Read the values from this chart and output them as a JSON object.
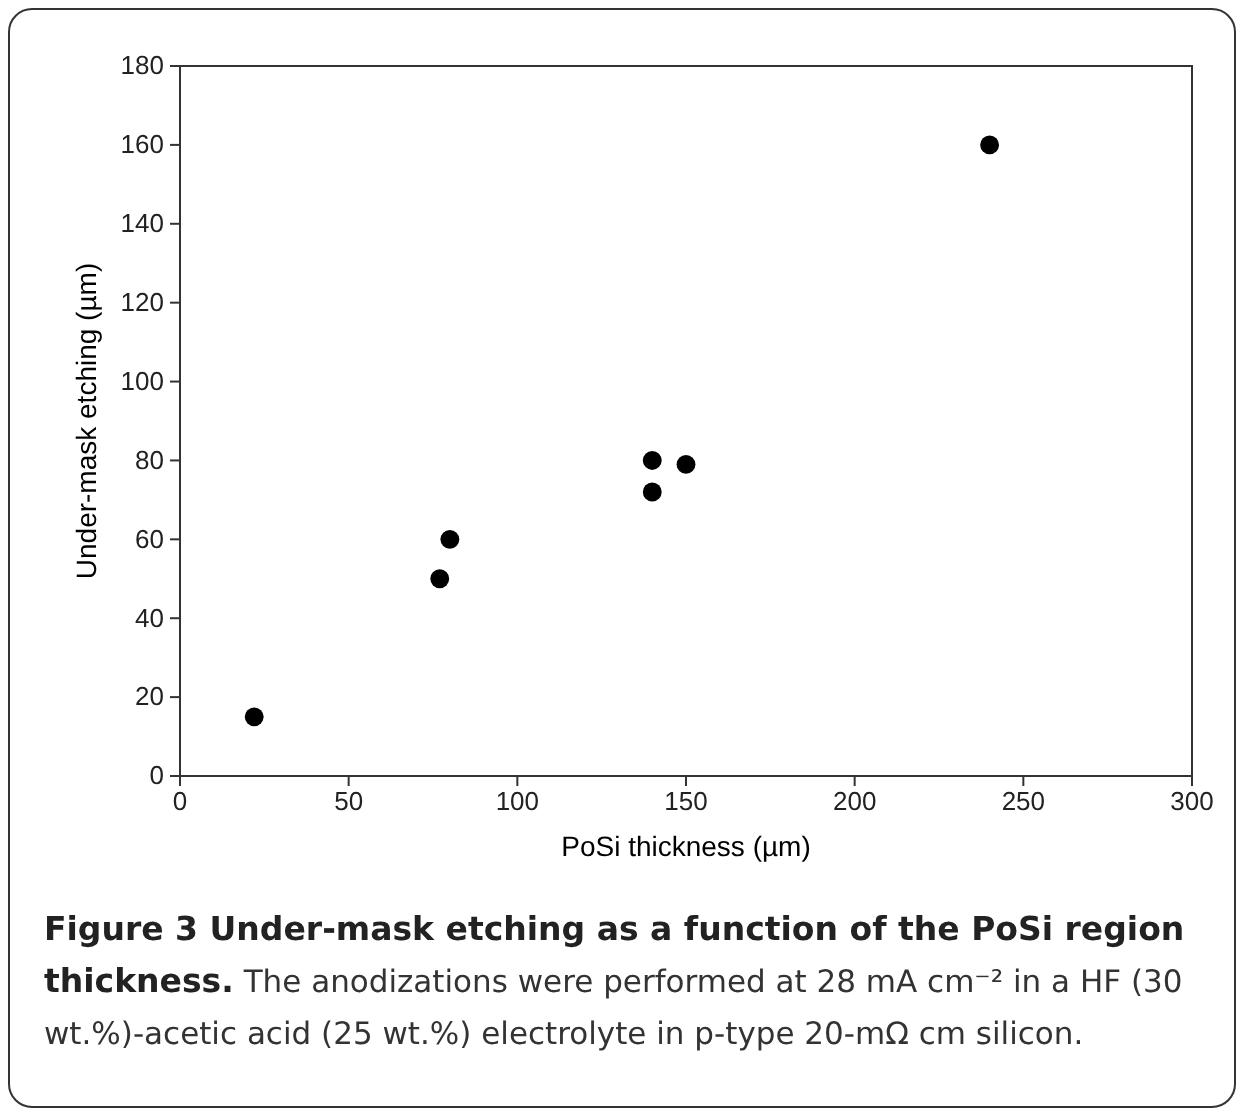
{
  "chart_data": {
    "type": "scatter",
    "title": "Figure 3 Under-mask etching as a function of the PoSi region thickness.",
    "annotations": [
      "The anodizations were performed at 28 mA cm⁻² in a HF (30 wt.%)-acetic acid (25 wt.%) electrolyte in p-type 20-mΩ cm silicon."
    ],
    "xlabel": "PoSi thickness (µm)",
    "ylabel": "Under-mask etching (µm)",
    "x": [
      22,
      77,
      80,
      140,
      140,
      150,
      240
    ],
    "series": [
      {
        "color": "#000000",
        "values": [
          15,
          50,
          60,
          80,
          72,
          79,
          160
        ]
      }
    ],
    "xlim": [
      0,
      300
    ],
    "xticks": [
      0,
      50,
      100,
      150,
      200,
      250,
      300
    ],
    "ylim": [
      0,
      180
    ],
    "yticks": [
      0,
      20,
      40,
      60,
      80,
      100,
      120,
      140,
      160,
      180
    ],
    "marker": "circle",
    "grid": false
  }
}
